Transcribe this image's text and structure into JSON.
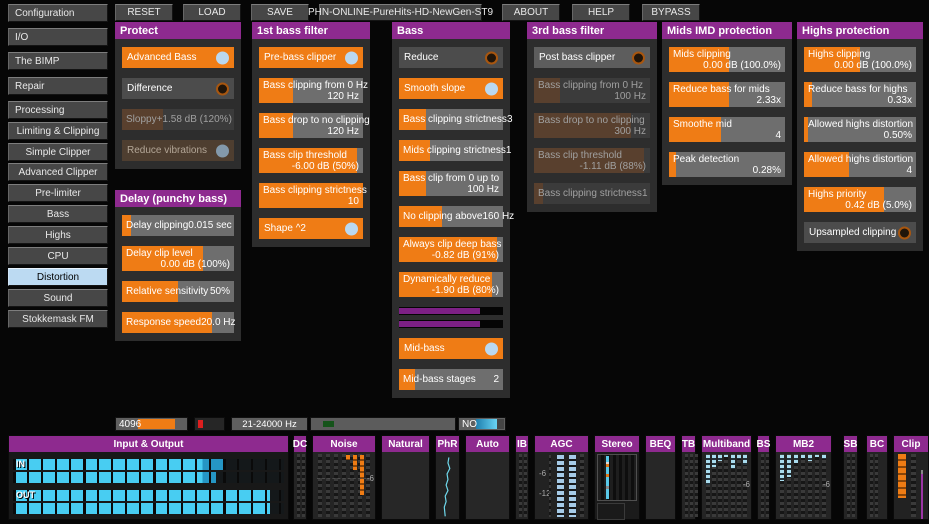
{
  "toolbar": {
    "buttons": [
      "RESET",
      "LOAD",
      "SAVE",
      "PHN-ONLINE-PureHits-HD-NewGen-ST9",
      "ABOUT",
      "HELP",
      "BYPASS"
    ]
  },
  "sidebar": {
    "items": [
      {
        "label": "Configuration",
        "level": 0,
        "selected": false
      },
      {
        "label": "I/O",
        "level": 0,
        "selected": false
      },
      {
        "label": "The BIMP",
        "level": 0,
        "selected": false
      },
      {
        "label": "Repair",
        "level": 0,
        "selected": false
      },
      {
        "label": "Processing",
        "level": 0,
        "selected": false
      },
      {
        "label": "Limiting & Clipping",
        "level": 1,
        "selected": false
      },
      {
        "label": "Simple Clipper",
        "level": 2,
        "selected": false
      },
      {
        "label": "Advanced Clipper",
        "level": 2,
        "selected": false
      },
      {
        "label": "Pre-limiter",
        "level": 2,
        "selected": false
      },
      {
        "label": "Bass",
        "level": 2,
        "selected": false
      },
      {
        "label": "Highs",
        "level": 2,
        "selected": false
      },
      {
        "label": "CPU",
        "level": 2,
        "selected": false
      },
      {
        "label": "Distortion",
        "level": 2,
        "selected": true
      },
      {
        "label": "Sound",
        "level": 2,
        "selected": false
      },
      {
        "label": "Stokkemask FM",
        "level": 2,
        "selected": false
      }
    ]
  },
  "panels": [
    {
      "title": "Protect",
      "items": [
        {
          "type": "toggle",
          "label": "Advanced Bass",
          "on": true
        },
        {
          "type": "toggle",
          "label": "Difference",
          "on": false
        },
        {
          "type": "slider",
          "label": "Sloppy",
          "value": "+1.58 dB (120%)",
          "fill": 37,
          "disabled": true
        },
        {
          "type": "toggle",
          "label": "Reduce vibrations",
          "on": true,
          "disabled": true
        }
      ]
    },
    {
      "title": "Delay (punchy bass)",
      "items": [
        {
          "type": "slider",
          "label": "Delay clipping",
          "value": "0.015 sec",
          "fill": 8
        },
        {
          "type": "slider",
          "label": "Delay clip level",
          "value": "0.00 dB (100%)",
          "fill": 72,
          "twoline": true
        },
        {
          "type": "slider",
          "label": "Relative sensitivity",
          "value": "50%",
          "fill": 50
        },
        {
          "type": "slider",
          "label": "Response speed",
          "value": "20.0 Hz",
          "fill": 80
        }
      ]
    },
    {
      "title": "1st bass filter",
      "items": [
        {
          "type": "toggle",
          "label": "Pre-bass clipper",
          "on": true
        },
        {
          "type": "slider",
          "label": "Bass clipping from 0 Hz",
          "value": "120 Hz",
          "fill": 33,
          "twoline": true
        },
        {
          "type": "slider",
          "label": "Bass drop to no clipping",
          "value": "120 Hz",
          "fill": 33,
          "twoline": true
        },
        {
          "type": "slider",
          "label": "Bass clip threshold",
          "value": "-6.00 dB (50%)",
          "fill": 94,
          "twoline": true
        },
        {
          "type": "slider",
          "label": "Bass clipping strictness",
          "value": "10",
          "fill": 100,
          "twoline": true
        },
        {
          "type": "toggle",
          "label": "Shape ^2",
          "on": true
        }
      ]
    },
    {
      "title": "Bass",
      "items": [
        {
          "type": "toggle",
          "label": "Reduce",
          "on": false
        },
        {
          "type": "toggle",
          "label": "Smooth slope",
          "on": true
        },
        {
          "type": "slider",
          "label": "Bass clipping strictness",
          "value": "3",
          "fill": 26
        },
        {
          "type": "slider",
          "label": "Mids clipping strictness",
          "value": "1",
          "fill": 30
        },
        {
          "type": "slider",
          "label": "Bass clip from 0 up to",
          "value": "100 Hz",
          "fill": 26,
          "twoline": true
        },
        {
          "type": "slider",
          "label": "No clipping above",
          "value": "160 Hz",
          "fill": 41
        },
        {
          "type": "slider",
          "label": "Always clip deep bass",
          "value": "-0.82 dB (91%)",
          "fill": 94,
          "twoline": true
        },
        {
          "type": "slider",
          "label": "Dynamically reduce",
          "value": "-1.90 dB (80%)",
          "fill": 89,
          "twoline": true
        },
        {
          "type": "meter",
          "fill": 78
        },
        {
          "type": "meter",
          "fill": 78
        },
        {
          "type": "toggle",
          "label": "Mid-bass",
          "on": true
        },
        {
          "type": "slider",
          "label": "Mid-bass stages",
          "value": "2",
          "fill": 15
        }
      ]
    },
    {
      "title": "3rd bass filter",
      "items": [
        {
          "type": "toggle",
          "label": "Post bass clipper",
          "on": false,
          "bright": true
        },
        {
          "type": "slider",
          "label": "Bass clipping from 0 Hz",
          "value": "100 Hz",
          "fill": 22,
          "twoline": true,
          "disabled": true
        },
        {
          "type": "slider",
          "label": "Bass drop to no clipping",
          "value": "300 Hz",
          "fill": 84,
          "twoline": true,
          "disabled": true
        },
        {
          "type": "slider",
          "label": "Bass clip threshold",
          "value": "-1.11 dB (88%)",
          "fill": 95,
          "twoline": true,
          "disabled": true
        },
        {
          "type": "slider",
          "label": "Bass clipping strictness",
          "value": "1",
          "fill": 8,
          "disabled": true
        }
      ]
    },
    {
      "title": "Mids IMD protection",
      "items": [
        {
          "type": "slider",
          "label": "Mids clipping",
          "value": "0.00 dB (100.0%)",
          "fill": 52,
          "twoline": true
        },
        {
          "type": "slider",
          "label": "Reduce bass for mids",
          "value": "2.33x",
          "fill": 52,
          "twoline": true
        },
        {
          "type": "slider",
          "label": "Smoothe mid",
          "value": "4",
          "fill": 45,
          "twoline": true
        },
        {
          "type": "slider",
          "label": "Peak detection",
          "value": "0.28%",
          "fill": 6,
          "twoline": true
        }
      ]
    },
    {
      "title": "Highs protection",
      "items": [
        {
          "type": "slider",
          "label": "Highs clipping",
          "value": "0.00 dB (100.0%)",
          "fill": 50,
          "twoline": true
        },
        {
          "type": "slider",
          "label": "Reduce bass for highs",
          "value": "0.33x",
          "fill": 7,
          "twoline": true
        },
        {
          "type": "slider",
          "label": "Allowed highs distortion",
          "value": "0.50%",
          "fill": 4,
          "twoline": true
        },
        {
          "type": "slider",
          "label": "Allowed highs distortion",
          "value": "4",
          "fill": 40,
          "twoline": true
        },
        {
          "type": "slider",
          "label": "Highs priority",
          "value": "0.42 dB (5.0%)",
          "fill": 71,
          "twoline": true
        },
        {
          "type": "toggle",
          "label": "Upsampled clipping",
          "on": false
        }
      ]
    }
  ],
  "strip": {
    "fft_size": "4096",
    "freq_range": "21-24000 Hz",
    "no_label": "NO"
  },
  "meters": {
    "panels": [
      {
        "label": "Input & Output",
        "rows": [
          {
            "label": "IN",
            "fill": 78,
            "split": 70
          },
          {
            "label": "",
            "fill": 75,
            "split": 70
          },
          {
            "label": "OUT",
            "fill": 95
          },
          {
            "label": "",
            "fill": 95
          }
        ]
      },
      {
        "label": "DC"
      },
      {
        "label": "Noise",
        "scale": "-6",
        "orange_bars": [
          5,
          15,
          40
        ]
      },
      {
        "label": "Natural"
      },
      {
        "label": "PhR"
      },
      {
        "label": "Auto"
      },
      {
        "label": "IB"
      },
      {
        "label": "AGC",
        "scale_top": "-6",
        "scale_bottom": "-12"
      },
      {
        "label": "Stereo"
      },
      {
        "label": "BEQ"
      },
      {
        "label": "TB"
      },
      {
        "label": "Multiband",
        "scale": "-6",
        "bars": [
          30,
          12,
          6,
          2,
          14,
          4,
          10
        ]
      },
      {
        "label": "BS"
      },
      {
        "label": "MB2",
        "scale": "-6",
        "bars": [
          26,
          22,
          8,
          3,
          6,
          2,
          4
        ]
      },
      {
        "label": "SB"
      },
      {
        "label": "BC"
      },
      {
        "label": "Clip"
      }
    ]
  },
  "colors": {
    "accent": "#ef7c15",
    "header_purple": "#8e2a8f",
    "selected_blue": "#bcdaf2",
    "meter_cyan": "#48cdf2",
    "meter_purple": "#7d2085",
    "disabled_fill": "#59402e"
  }
}
